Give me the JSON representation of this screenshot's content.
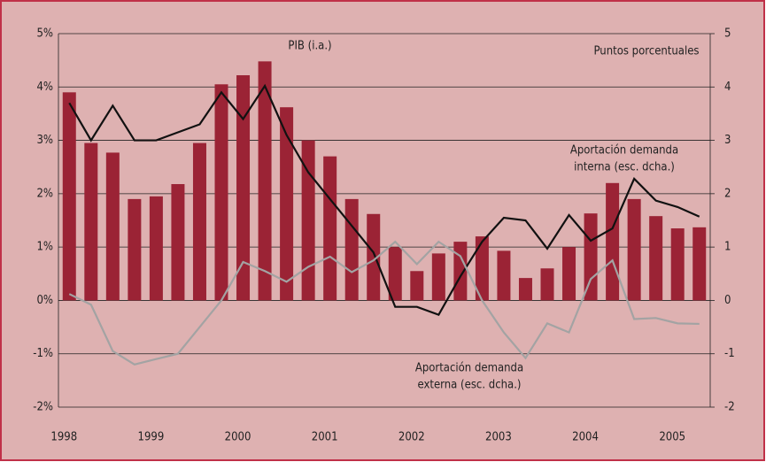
{
  "chart_data": {
    "type": "bar",
    "categories": [
      "1998",
      null,
      null,
      null,
      "1999",
      null,
      null,
      null,
      "2000",
      null,
      null,
      null,
      "2001",
      null,
      null,
      null,
      "2002",
      null,
      null,
      null,
      "2003",
      null,
      null,
      null,
      "2004",
      null,
      null,
      null,
      "2005",
      null
    ],
    "series": [
      {
        "name": [
          "PIB (i.a.)"
        ],
        "type": "bar",
        "color": "#9b2335",
        "axis": "y",
        "values": [
          3.9,
          2.95,
          2.77,
          1.9,
          1.95,
          2.18,
          2.95,
          4.05,
          4.22,
          4.48,
          3.62,
          3.0,
          2.7,
          1.9,
          1.62,
          1.0,
          0.55,
          0.88,
          1.1,
          1.2,
          0.93,
          0.42,
          0.6,
          1.0,
          1.63,
          2.2,
          1.9,
          1.58,
          1.35,
          1.37
        ]
      },
      {
        "name": [
          "Aportación demanda",
          "interna (esc. dcha.)"
        ],
        "type": "line",
        "color": "#111111",
        "axis": "y2",
        "values": [
          3.7,
          3.0,
          3.65,
          3.0,
          3.0,
          3.15,
          3.3,
          3.9,
          3.4,
          4.02,
          3.1,
          2.4,
          1.9,
          1.4,
          0.9,
          -0.12,
          -0.12,
          -0.27,
          0.45,
          1.1,
          1.55,
          1.5,
          0.97,
          1.6,
          1.12,
          1.35,
          2.28,
          1.87,
          1.75,
          1.57
        ]
      },
      {
        "name": [
          "Aportación demanda",
          "externa (esc. dcha.)"
        ],
        "type": "line",
        "color": "#a3a3a3",
        "axis": "y2",
        "values": [
          0.12,
          -0.08,
          -0.95,
          -1.2,
          -1.1,
          -1.0,
          -0.5,
          0.0,
          0.72,
          0.55,
          0.35,
          0.63,
          0.82,
          0.53,
          0.75,
          1.1,
          0.68,
          1.1,
          0.83,
          0.0,
          -0.6,
          -1.08,
          -0.43,
          -0.6,
          0.4,
          0.75,
          -0.35,
          -0.33,
          -0.43,
          -0.44
        ]
      }
    ],
    "y2_label": "Puntos porcentuales",
    "ylim": [
      -2,
      5
    ],
    "yticks": [
      {
        "value": 5,
        "label": "5%"
      },
      {
        "value": 4,
        "label": "4%"
      },
      {
        "value": 3,
        "label": "3%"
      },
      {
        "value": 2,
        "label": "2%"
      },
      {
        "value": 1,
        "label": "1%"
      },
      {
        "value": 0,
        "label": "0%"
      },
      {
        "value": -1,
        "label": "-1%"
      },
      {
        "value": -2,
        "label": "-2%"
      }
    ],
    "y2lim": [
      -2,
      5
    ],
    "y2ticks": [
      5,
      4,
      3,
      2,
      1,
      0,
      -1,
      -2
    ],
    "grid": true,
    "background": "#deb1b1"
  }
}
